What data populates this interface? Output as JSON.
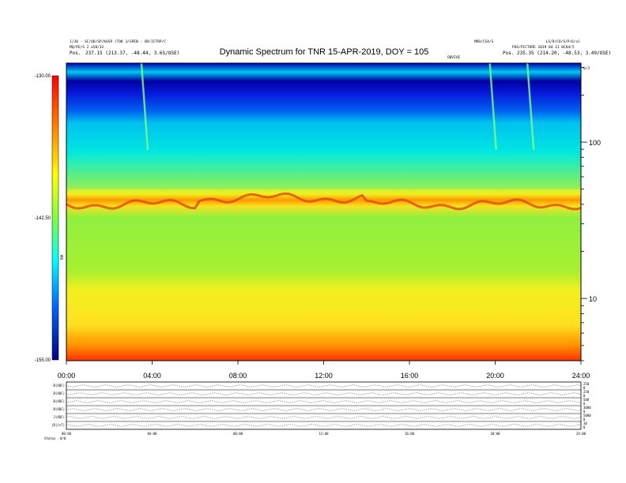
{
  "chart_data": {
    "type": "heatmap",
    "title": "Dynamic Spectrum for TNR 15-APR-2019, DOY = 105",
    "header": {
      "left_line1": "1/30 - SC/QO/SP/KOSP (TOK 3/SPEN - OR/ICTRP/C",
      "left_line2": "MQ/PE/S 2 ±50/32",
      "left_line3_label": "Pos.",
      "left_line3_value": "237.15 (213.37, -48.44, 3.6S/OSE)",
      "mid_right": "MRO/CSA/S",
      "right_line1": "LS/R/CO/S/P/6/ol",
      "right_line2": "POS/PICTURE 2019 04 11 0C04/5",
      "right_line3_label": "Pos.",
      "right_line3_value": "235.35 (214.20, -48.53, 3.49/OSE)",
      "marker_mid": "OBVIOE",
      "marker_right": "0/3"
    },
    "x_ticks": [
      "00:00",
      "04:00",
      "08:00",
      "12:00",
      "16:00",
      "20:00",
      "24:00"
    ],
    "x_range_hours": [
      0,
      24
    ],
    "y_right_ticks": [
      "100",
      "10"
    ],
    "y_scale": "log",
    "y_range_khz": [
      4,
      320
    ],
    "colorbar": {
      "ticks": [
        "-130.00",
        "-142.50",
        "-155.00"
      ],
      "range": [
        -155.0,
        -130.0
      ],
      "label": "TNR",
      "colormap": "rainbow (blue to red)"
    },
    "features": {
      "background_level_band_khz": [
        50,
        80
      ],
      "red_peak_track_khz": 40,
      "type_iii_burst_times_hours": [
        3.5,
        19.75,
        21.5
      ]
    },
    "panels": {
      "lower_labels": [
        "B(ADC)",
        "B(ADC)",
        "B(ADC)",
        "B(ADC)",
        "J(ADC)",
        "|B|(nT)"
      ],
      "right_ticks": [
        [
          "250",
          "0"
        ],
        [
          "250",
          "0"
        ],
        [
          "500",
          "0"
        ],
        [
          "3000",
          "0"
        ],
        [
          "5000",
          "0"
        ],
        [
          "10",
          "0"
        ]
      ],
      "x_ticks": [
        "00:00",
        "04:00",
        "08:00",
        "12:00",
        "16:00",
        "20:00",
        "24:00"
      ],
      "footer_label": "Status",
      "footer_value": "0/0"
    },
    "grid": false
  }
}
